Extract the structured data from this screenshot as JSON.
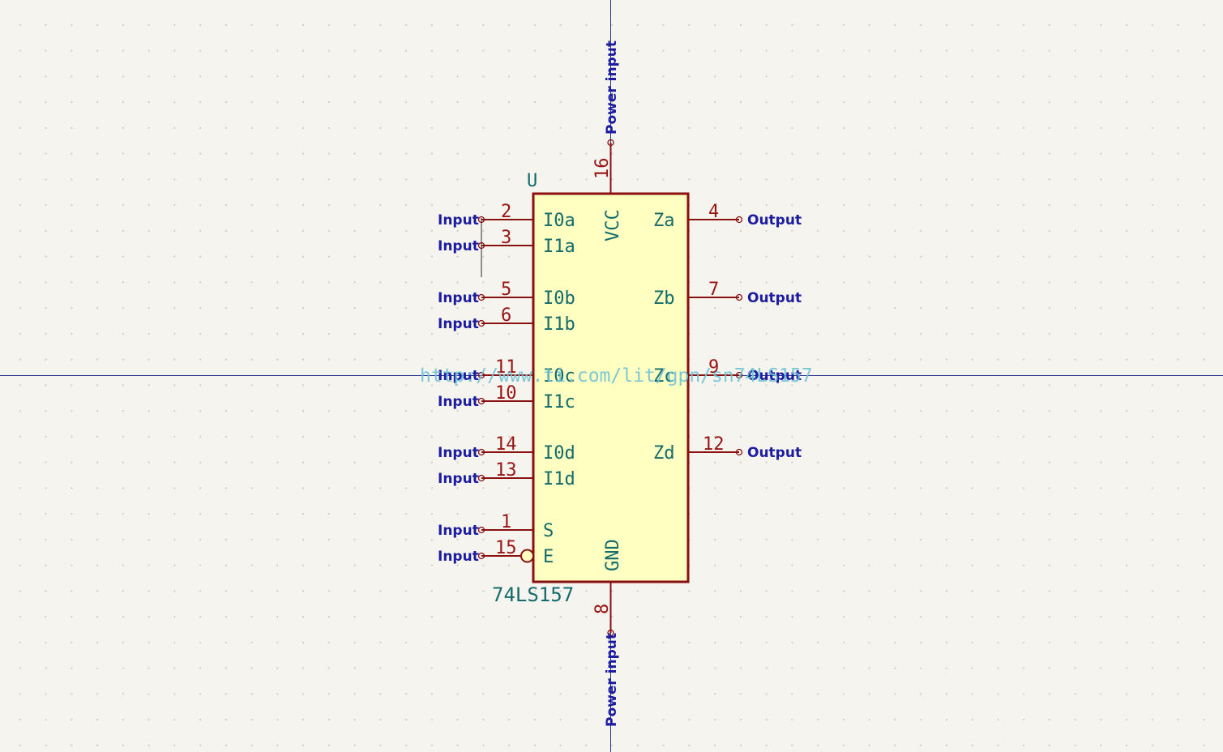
{
  "component": {
    "reference": "U",
    "value": "74LS157",
    "datasheet": "http://www.ti.com/lit/gpn/sn74LS157"
  },
  "pins": {
    "vcc": {
      "number": "16",
      "name": "VCC",
      "type": "Power input"
    },
    "gnd": {
      "number": "8",
      "name": "GND",
      "type": "Power input"
    },
    "i0a": {
      "number": "2",
      "name": "I0a",
      "type": "Input"
    },
    "i1a": {
      "number": "3",
      "name": "I1a",
      "type": "Input"
    },
    "i0b": {
      "number": "5",
      "name": "I0b",
      "type": "Input"
    },
    "i1b": {
      "number": "6",
      "name": "I1b",
      "type": "Input"
    },
    "i0c": {
      "number": "11",
      "name": "I0c",
      "type": "Input"
    },
    "i1c": {
      "number": "10",
      "name": "I1c",
      "type": "Input"
    },
    "i0d": {
      "number": "14",
      "name": "I0d",
      "type": "Input"
    },
    "i1d": {
      "number": "13",
      "name": "I1d",
      "type": "Input"
    },
    "s": {
      "number": "1",
      "name": "S",
      "type": "Input"
    },
    "e": {
      "number": "15",
      "name": "E",
      "type": "Input"
    },
    "za": {
      "number": "4",
      "name": "Za",
      "type": "Output"
    },
    "zb": {
      "number": "7",
      "name": "Zb",
      "type": "Output"
    },
    "zc": {
      "number": "9",
      "name": "Zc",
      "type": "Output"
    },
    "zd": {
      "number": "12",
      "name": "Zd",
      "type": "Output"
    }
  }
}
